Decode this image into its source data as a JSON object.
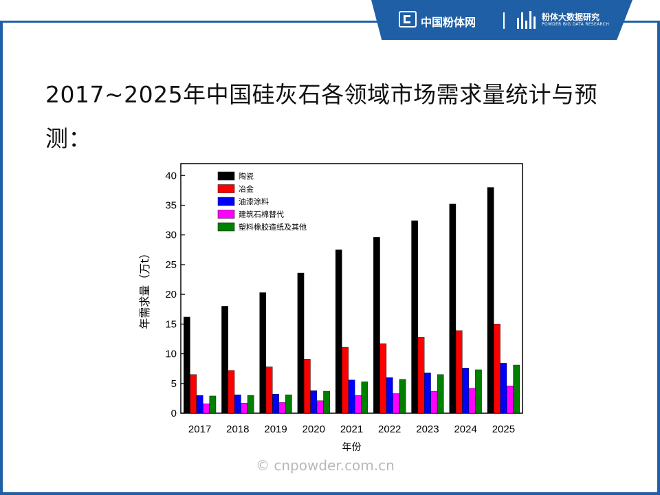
{
  "header": {
    "brand_name": "中国粉体网",
    "research_name": "粉体大数据研究",
    "research_sub": "POWDER BIG DATA RESEARCH",
    "accent_color": "#1f5fa6"
  },
  "title": "2017~2025年中国硅灰石各领域市场需求量统计与预测：",
  "watermark": "© cnpowder.com.cn",
  "chart_data": {
    "type": "bar",
    "title": "",
    "xlabel": "年份",
    "ylabel": "年需求量（万t）",
    "ylim": [
      0,
      42
    ],
    "yticks": [
      0,
      5,
      10,
      15,
      20,
      25,
      30,
      35,
      40
    ],
    "categories": [
      "2017",
      "2018",
      "2019",
      "2020",
      "2021",
      "2022",
      "2023",
      "2024",
      "2025"
    ],
    "legend_position": "top-left",
    "series": [
      {
        "name": "陶瓷",
        "color": "#000000",
        "values": [
          16.2,
          18.0,
          20.3,
          23.6,
          27.5,
          29.6,
          32.4,
          35.2,
          38.0
        ]
      },
      {
        "name": "冶金",
        "color": "#ff0000",
        "values": [
          6.5,
          7.2,
          7.8,
          9.1,
          11.1,
          11.7,
          12.8,
          13.9,
          15.0
        ]
      },
      {
        "name": "油漆涂料",
        "color": "#0000ff",
        "values": [
          3.0,
          3.1,
          3.2,
          3.8,
          5.6,
          6.0,
          6.8,
          7.6,
          8.4
        ]
      },
      {
        "name": "建筑石棉替代",
        "color": "#ff00ff",
        "values": [
          1.6,
          1.7,
          1.8,
          2.1,
          3.0,
          3.3,
          3.7,
          4.2,
          4.6
        ]
      },
      {
        "name": "塑料橡胶造纸及其他",
        "color": "#008000",
        "values": [
          2.9,
          3.0,
          3.1,
          3.7,
          5.3,
          5.7,
          6.5,
          7.3,
          8.1
        ]
      }
    ]
  }
}
